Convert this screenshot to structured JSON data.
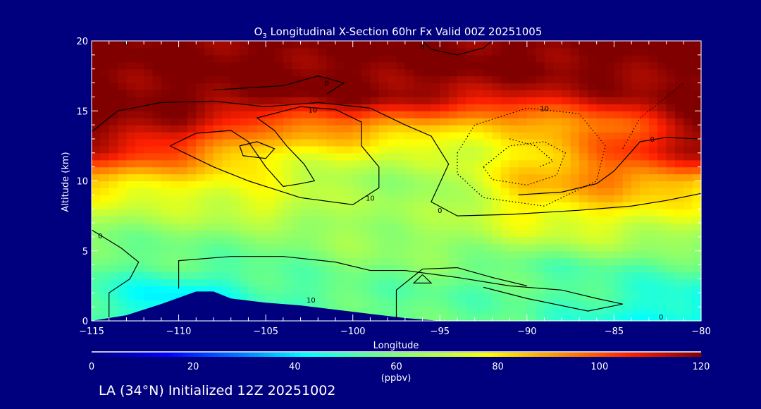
{
  "chart_data": {
    "type": "heatmap",
    "title": "O3 Longitudinal X-Section 60hr  Fx Valid 00Z 20251005",
    "title_main": "O",
    "title_sub": "3",
    "title_rest": " Longitudinal X-Section 60hr  Fx Valid 00Z 20251005",
    "xlabel": "Longitude",
    "ylabel": "Altitude (km)",
    "xlim": [
      -115,
      -80
    ],
    "ylim": [
      0,
      20
    ],
    "xticks": [
      -115,
      -110,
      -105,
      -100,
      -95,
      -90,
      -85,
      -80
    ],
    "xtick_labels": [
      "−115",
      "−110",
      "−105",
      "−100",
      "−95",
      "−90",
      "−85",
      "−80"
    ],
    "yticks": [
      0,
      5,
      10,
      15,
      20
    ],
    "ytick_labels": [
      "0",
      "5",
      "10",
      "15",
      "20"
    ],
    "grid_lon": [
      -115,
      -110,
      -105,
      -100,
      -95,
      -90,
      -85,
      -80
    ],
    "grid_alt": [
      0,
      2,
      4,
      6,
      8,
      10,
      12,
      14,
      16,
      18,
      20
    ],
    "values_ppbv": [
      [
        50,
        45,
        50,
        55,
        55,
        55,
        45,
        40
      ],
      [
        50,
        40,
        50,
        55,
        55,
        55,
        50,
        45
      ],
      [
        55,
        55,
        55,
        60,
        60,
        55,
        55,
        55
      ],
      [
        60,
        60,
        60,
        65,
        65,
        70,
        70,
        65
      ],
      [
        70,
        70,
        75,
        65,
        65,
        80,
        80,
        75
      ],
      [
        85,
        80,
        75,
        65,
        65,
        85,
        95,
        85
      ],
      [
        110,
        100,
        80,
        75,
        70,
        80,
        100,
        115
      ],
      [
        120,
        115,
        95,
        95,
        85,
        85,
        95,
        120
      ],
      [
        120,
        120,
        120,
        120,
        115,
        110,
        115,
        120
      ],
      [
        120,
        120,
        120,
        120,
        120,
        120,
        120,
        120
      ],
      [
        120,
        120,
        120,
        120,
        120,
        120,
        120,
        120
      ]
    ],
    "terrain": [
      [
        -115,
        0
      ],
      [
        -113,
        0.4
      ],
      [
        -111,
        1.2
      ],
      [
        -109,
        2.1
      ],
      [
        -108,
        2.1
      ],
      [
        -107,
        1.6
      ],
      [
        -105,
        1.3
      ],
      [
        -103,
        1.1
      ],
      [
        -101,
        0.8
      ],
      [
        -99,
        0.5
      ],
      [
        -97,
        0.2
      ],
      [
        -95,
        0
      ],
      [
        -80,
        0
      ]
    ],
    "contours": [
      {
        "level": 10,
        "style": "solid",
        "points": [
          [
            -110.5,
            12.5
          ],
          [
            -109,
            13.4
          ],
          [
            -107,
            13.6
          ],
          [
            -106,
            12.8
          ],
          [
            -105,
            11
          ],
          [
            -104,
            9.6
          ],
          [
            -103,
            9.8
          ],
          [
            -102.2,
            10
          ],
          [
            -102.8,
            11.2
          ],
          [
            -103.8,
            12.5
          ],
          [
            -104.5,
            13.6
          ],
          [
            -105.5,
            14.5
          ],
          [
            -103,
            15.3
          ],
          [
            -101,
            15.1
          ],
          [
            -99.5,
            14.2
          ],
          [
            -99.5,
            12.5
          ],
          [
            -98.5,
            11
          ],
          [
            -98.5,
            9.5
          ],
          [
            -100,
            8.3
          ],
          [
            -103,
            8.8
          ],
          [
            -106,
            10
          ],
          [
            -108,
            11
          ],
          [
            -110.5,
            12.5
          ]
        ]
      },
      {
        "level": 10,
        "style": "solid",
        "points": [
          [
            -106.5,
            12.5
          ],
          [
            -105.5,
            12.8
          ],
          [
            -104.5,
            12.3
          ],
          [
            -105,
            11.6
          ],
          [
            -106.3,
            11.8
          ],
          [
            -106.5,
            12.5
          ]
        ]
      },
      {
        "level": 0,
        "style": "solid",
        "points": [
          [
            -115,
            6.5
          ],
          [
            -113.3,
            5.2
          ],
          [
            -112.3,
            4.2
          ],
          [
            -112.8,
            3
          ],
          [
            -114,
            2
          ],
          [
            -114,
            0
          ]
        ]
      },
      {
        "level": 0,
        "style": "solid",
        "points": [
          [
            -110,
            2.3
          ],
          [
            -110,
            4.3
          ],
          [
            -107,
            4.6
          ],
          [
            -104,
            4.6
          ],
          [
            -101,
            4.2
          ],
          [
            -99,
            3.6
          ],
          [
            -97,
            3.6
          ],
          [
            -94,
            3.1
          ],
          [
            -91,
            2.5
          ],
          [
            -88,
            2.2
          ],
          [
            -86,
            1.6
          ],
          [
            -84.5,
            1.2
          ],
          [
            -86.5,
            0.7
          ],
          [
            -90,
            1.6
          ],
          [
            -92.5,
            2.4
          ]
        ]
      },
      {
        "level": 0,
        "style": "solid",
        "points": [
          [
            -97.5,
            0.2
          ],
          [
            -97.5,
            2.2
          ],
          [
            -96,
            3.7
          ],
          [
            -94,
            3.8
          ],
          [
            -92,
            3.1
          ],
          [
            -90,
            2.5
          ]
        ]
      },
      {
        "level": 0,
        "style": "solid",
        "points": [
          [
            -115,
            13.5
          ],
          [
            -113.5,
            15
          ],
          [
            -111,
            15.6
          ],
          [
            -108,
            15.7
          ],
          [
            -105,
            15.3
          ],
          [
            -102,
            15.6
          ],
          [
            -99,
            15.2
          ],
          [
            -97,
            14
          ],
          [
            -95.5,
            13.2
          ],
          [
            -94.5,
            11.2
          ],
          [
            -95.5,
            8.5
          ],
          [
            -94,
            7.5
          ],
          [
            -91,
            7.6
          ],
          [
            -87,
            7.9
          ],
          [
            -84,
            8.2
          ],
          [
            -82,
            8.6
          ],
          [
            -80,
            9.1
          ]
        ]
      },
      {
        "level": 0,
        "style": "solid",
        "points": [
          [
            -80,
            13
          ],
          [
            -82,
            13.1
          ],
          [
            -83.5,
            12.8
          ],
          [
            -85,
            10.7
          ],
          [
            -86,
            9.8
          ],
          [
            -88,
            9.2
          ],
          [
            -90.5,
            9
          ]
        ]
      },
      {
        "level": 0,
        "style": "solid",
        "points": [
          [
            -96,
            3.3
          ],
          [
            -95.5,
            2.7
          ],
          [
            -96.5,
            2.7
          ],
          [
            -96,
            3.3
          ]
        ]
      },
      {
        "level": -10,
        "style": "dotted",
        "points": [
          [
            -94,
            12
          ],
          [
            -93,
            14
          ],
          [
            -90,
            15.2
          ],
          [
            -87,
            14.8
          ],
          [
            -85.5,
            12.5
          ],
          [
            -86,
            10
          ],
          [
            -89,
            8.2
          ],
          [
            -92.5,
            8.8
          ],
          [
            -94,
            10.5
          ],
          [
            -94,
            12
          ]
        ]
      },
      {
        "level": -10,
        "style": "dotted",
        "points": [
          [
            -92.5,
            11
          ],
          [
            -91,
            12.5
          ],
          [
            -89,
            12.8
          ],
          [
            -87.8,
            12
          ],
          [
            -88.3,
            10.4
          ],
          [
            -90,
            9.7
          ],
          [
            -92,
            10.1
          ],
          [
            -92.5,
            11
          ]
        ]
      },
      {
        "level": -10,
        "style": "dotted",
        "points": [
          [
            -91,
            13
          ],
          [
            -89.5,
            12.5
          ],
          [
            -88.5,
            11.4
          ],
          [
            -89.3,
            11
          ]
        ]
      },
      {
        "level": -10,
        "style": "dotted",
        "points": [
          [
            -84.5,
            12.3
          ],
          [
            -83.5,
            14.5
          ],
          [
            -82,
            16
          ],
          [
            -81,
            17
          ]
        ]
      },
      {
        "level": 10,
        "style": "solid",
        "points": [
          [
            -108,
            16.5
          ],
          [
            -104,
            16.8
          ],
          [
            -102,
            17.5
          ],
          [
            -100.5,
            17
          ],
          [
            -101.5,
            16.2
          ]
        ]
      },
      {
        "level": 0,
        "style": "solid",
        "points": [
          [
            -96,
            20
          ],
          [
            -95.5,
            19.4
          ],
          [
            -94,
            19
          ],
          [
            -92.5,
            19.5
          ],
          [
            -92,
            20
          ]
        ]
      }
    ],
    "contour_labels": [
      {
        "text": "10",
        "lon": -102.3,
        "alt": 15.1
      },
      {
        "text": "10",
        "lon": -99,
        "alt": 8.8
      },
      {
        "text": "0",
        "lon": -95,
        "alt": 7.9
      },
      {
        "text": "0",
        "lon": -114.5,
        "alt": 6.1
      },
      {
        "text": "0",
        "lon": -113,
        "alt": 19.9
      },
      {
        "text": "10",
        "lon": -102.4,
        "alt": 1.5
      },
      {
        "text": "0",
        "lon": -82.3,
        "alt": 0.3
      },
      {
        "text": "0",
        "lon": -82.8,
        "alt": 13
      },
      {
        "text": "10",
        "lon": -89,
        "alt": 15.2
      },
      {
        "text": "0",
        "lon": -96,
        "alt": 19.6
      },
      {
        "text": "0",
        "lon": -101.5,
        "alt": 17
      }
    ],
    "colorbar": {
      "label": "(ppbv)",
      "ticks": [
        0,
        20,
        40,
        60,
        80,
        100,
        120
      ],
      "tick_labels": [
        "0",
        "20",
        "40",
        "60",
        "80",
        "100",
        "120"
      ],
      "range": [
        0,
        120
      ],
      "stops": [
        [
          0,
          "#00007f"
        ],
        [
          15,
          "#0000ff"
        ],
        [
          30,
          "#0080ff"
        ],
        [
          42,
          "#00ffff"
        ],
        [
          55,
          "#60ff90"
        ],
        [
          70,
          "#c0ff40"
        ],
        [
          78,
          "#ffff00"
        ],
        [
          90,
          "#ffa000"
        ],
        [
          106,
          "#ff2000"
        ],
        [
          120,
          "#800000"
        ]
      ]
    }
  },
  "footer": "LA (34°N) Initialized 12Z 20251002"
}
